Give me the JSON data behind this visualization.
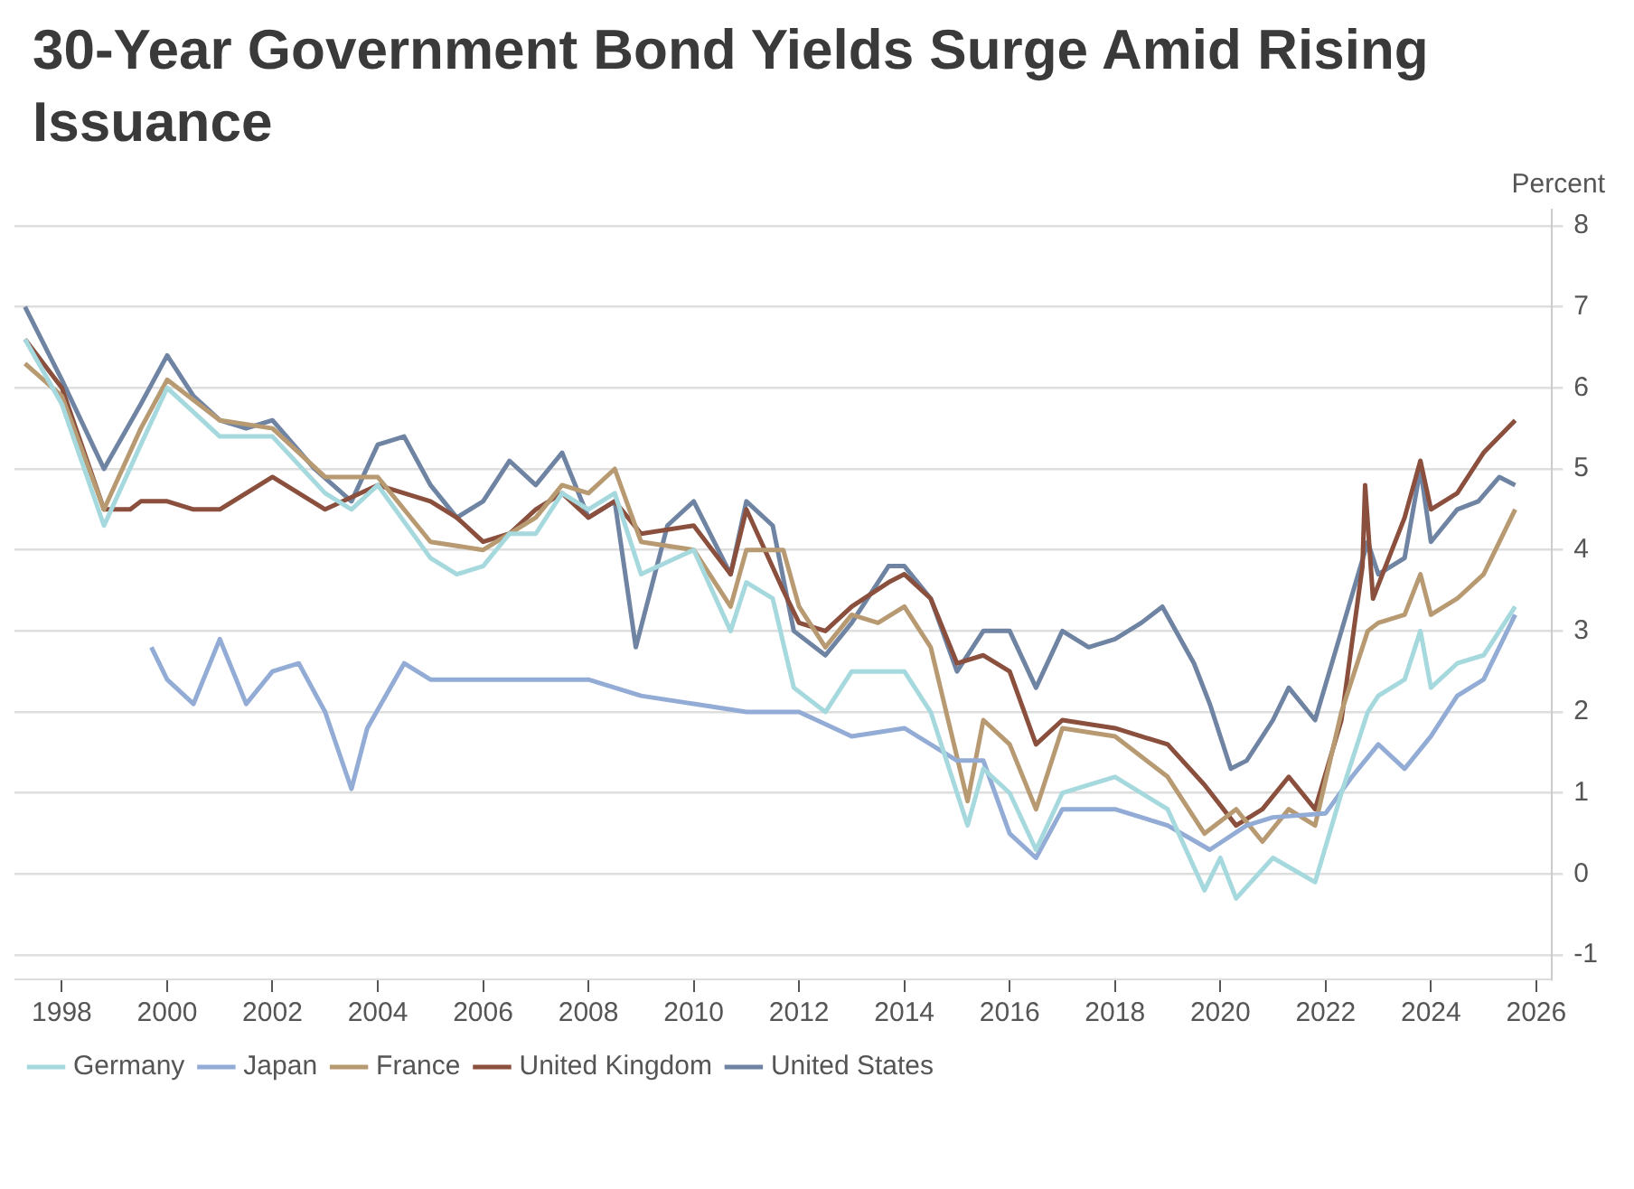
{
  "chart_data": {
    "type": "line",
    "title": "30-Year Government Bond Yields Surge Amid Rising Issuance",
    "ylabel": "Percent",
    "xlim": [
      1997.1,
      2026.3
    ],
    "xticks": [
      1998,
      2000,
      2002,
      2004,
      2006,
      2008,
      2010,
      2012,
      2014,
      2016,
      2018,
      2020,
      2022,
      2024,
      2026
    ],
    "ylim": [
      -1.3,
      8.2
    ],
    "yticks": [
      -1,
      0,
      1,
      2,
      3,
      4,
      5,
      6,
      7,
      8
    ],
    "grid": "y",
    "legend": "bottom left",
    "marker": "none",
    "line_style": "solid",
    "series": [
      {
        "name": "Germany",
        "color": "#a6d9de",
        "x": [
          1997.3,
          1998,
          1998.8,
          1999.5,
          2000,
          2000.5,
          2001,
          2001.5,
          2002,
          2003,
          2003.5,
          2004,
          2005,
          2005.5,
          2006,
          2006.5,
          2007,
          2007.5,
          2008,
          2008.5,
          2009,
          2010,
          2010.7,
          2011,
          2011.5,
          2011.9,
          2012.5,
          2013,
          2014,
          2014.5,
          2015.2,
          2015.5,
          2016,
          2016.5,
          2017,
          2018,
          2019,
          2019.7,
          2020,
          2020.3,
          2021,
          2021.8,
          2022.3,
          2022.8,
          2023,
          2023.5,
          2023.8,
          2024,
          2024.5,
          2025,
          2025.6
        ],
        "values": [
          6.6,
          5.8,
          4.3,
          5.3,
          6.0,
          5.7,
          5.4,
          5.4,
          5.4,
          4.7,
          4.5,
          4.8,
          3.9,
          3.7,
          3.8,
          4.2,
          4.2,
          4.7,
          4.5,
          4.7,
          3.7,
          4.0,
          3.0,
          3.6,
          3.4,
          2.3,
          2.0,
          2.5,
          2.5,
          2.0,
          0.6,
          1.3,
          1.0,
          0.3,
          1.0,
          1.2,
          0.8,
          -0.2,
          0.2,
          -0.3,
          0.2,
          -0.1,
          1.0,
          2.0,
          2.2,
          2.4,
          3.0,
          2.3,
          2.6,
          2.7,
          3.3
        ]
      },
      {
        "name": "Japan",
        "color": "#93acd6",
        "x": [
          1999.7,
          2000,
          2000.5,
          2001,
          2001.5,
          2002,
          2002.5,
          2003,
          2003.5,
          2003.8,
          2004.5,
          2005,
          2006,
          2007,
          2008,
          2009,
          2010,
          2011,
          2012,
          2013,
          2014,
          2015,
          2015.5,
          2016,
          2016.5,
          2017,
          2018,
          2019,
          2019.8,
          2020.5,
          2021,
          2022,
          2022.5,
          2023,
          2023.5,
          2024,
          2024.5,
          2025,
          2025.6
        ],
        "values": [
          2.8,
          2.4,
          2.1,
          2.9,
          2.1,
          2.5,
          2.6,
          2.0,
          1.05,
          1.8,
          2.6,
          2.4,
          2.4,
          2.4,
          2.4,
          2.2,
          2.1,
          2.0,
          2.0,
          1.7,
          1.8,
          1.4,
          1.4,
          0.5,
          0.2,
          0.8,
          0.8,
          0.6,
          0.3,
          0.6,
          0.7,
          0.75,
          1.2,
          1.6,
          1.3,
          1.7,
          2.2,
          2.4,
          3.2
        ]
      },
      {
        "name": "France",
        "color": "#b89a72",
        "x": [
          1997.3,
          1998,
          1998.8,
          1999.5,
          2000,
          2001,
          2002,
          2003,
          2004,
          2005,
          2006,
          2007,
          2007.5,
          2008,
          2008.5,
          2009,
          2010,
          2010.7,
          2011,
          2011.7,
          2012,
          2012.5,
          2013,
          2013.5,
          2014,
          2014.5,
          2015.2,
          2015.5,
          2016,
          2016.5,
          2017,
          2018,
          2019,
          2019.7,
          2020.3,
          2020.8,
          2021.3,
          2021.8,
          2022.3,
          2022.8,
          2023,
          2023.5,
          2023.8,
          2024,
          2024.5,
          2025,
          2025.6
        ],
        "values": [
          6.3,
          5.9,
          4.5,
          5.5,
          6.1,
          5.6,
          5.5,
          4.9,
          4.9,
          4.1,
          4.0,
          4.4,
          4.8,
          4.7,
          5.0,
          4.1,
          4.0,
          3.3,
          4.0,
          4.0,
          3.3,
          2.8,
          3.2,
          3.1,
          3.3,
          2.8,
          0.9,
          1.9,
          1.6,
          0.8,
          1.8,
          1.7,
          1.2,
          0.5,
          0.8,
          0.4,
          0.8,
          0.6,
          2.0,
          3.0,
          3.1,
          3.2,
          3.7,
          3.2,
          3.4,
          3.7,
          4.5
        ]
      },
      {
        "name": "United Kingdom",
        "color": "#8a4f3d",
        "x": [
          1997.3,
          1998,
          1998.8,
          1999.3,
          1999.5,
          2000,
          2000.5,
          2001,
          2002,
          2003,
          2004,
          2005,
          2005.5,
          2006,
          2006.5,
          2007,
          2007.5,
          2008,
          2008.5,
          2009,
          2010,
          2010.7,
          2011,
          2011.7,
          2012,
          2012.5,
          2013,
          2013.7,
          2014,
          2014.5,
          2015,
          2015.5,
          2016,
          2016.5,
          2017,
          2018,
          2019,
          2019.7,
          2020.3,
          2020.8,
          2021.3,
          2021.8,
          2022.3,
          2022.7,
          2022.75,
          2022.9,
          2023.5,
          2023.8,
          2024,
          2024.5,
          2025,
          2025.6
        ],
        "values": [
          6.6,
          6.0,
          4.5,
          4.5,
          4.6,
          4.6,
          4.5,
          4.5,
          4.9,
          4.5,
          4.8,
          4.6,
          4.4,
          4.1,
          4.2,
          4.5,
          4.7,
          4.4,
          4.6,
          4.2,
          4.3,
          3.7,
          4.5,
          3.5,
          3.1,
          3.0,
          3.3,
          3.6,
          3.7,
          3.4,
          2.6,
          2.7,
          2.5,
          1.6,
          1.9,
          1.8,
          1.6,
          1.1,
          0.6,
          0.8,
          1.2,
          0.8,
          1.9,
          3.8,
          4.8,
          3.4,
          4.4,
          5.1,
          4.5,
          4.7,
          5.2,
          5.6
        ]
      },
      {
        "name": "United States",
        "color": "#6f83a3",
        "x": [
          1997.3,
          1998,
          1998.8,
          1999.5,
          2000,
          2000.5,
          2001,
          2001.5,
          2002,
          2002.8,
          2003.5,
          2004,
          2004.5,
          2005,
          2005.5,
          2006,
          2006.5,
          2007,
          2007.5,
          2008,
          2008.5,
          2008.9,
          2009.5,
          2010,
          2010.7,
          2011,
          2011.5,
          2011.9,
          2012.5,
          2013,
          2013.7,
          2014,
          2014.5,
          2015,
          2015.5,
          2016,
          2016.5,
          2017,
          2017.5,
          2018,
          2018.5,
          2018.9,
          2019.5,
          2019.8,
          2020.2,
          2020.5,
          2021,
          2021.3,
          2021.8,
          2022.3,
          2022.8,
          2023,
          2023.5,
          2023.8,
          2024,
          2024.5,
          2024.9,
          2025.3,
          2025.6
        ],
        "values": [
          7.0,
          6.1,
          5.0,
          5.8,
          6.4,
          5.9,
          5.6,
          5.5,
          5.6,
          5.0,
          4.6,
          5.3,
          5.4,
          4.8,
          4.4,
          4.6,
          5.1,
          4.8,
          5.2,
          4.4,
          4.6,
          2.8,
          4.3,
          4.6,
          3.7,
          4.6,
          4.3,
          3.0,
          2.7,
          3.1,
          3.8,
          3.8,
          3.4,
          2.5,
          3.0,
          3.0,
          2.3,
          3.0,
          2.8,
          2.9,
          3.1,
          3.3,
          2.6,
          2.1,
          1.3,
          1.4,
          1.9,
          2.3,
          1.9,
          3.0,
          4.1,
          3.7,
          3.9,
          5.0,
          4.1,
          4.5,
          4.6,
          4.9,
          4.8
        ]
      }
    ]
  }
}
